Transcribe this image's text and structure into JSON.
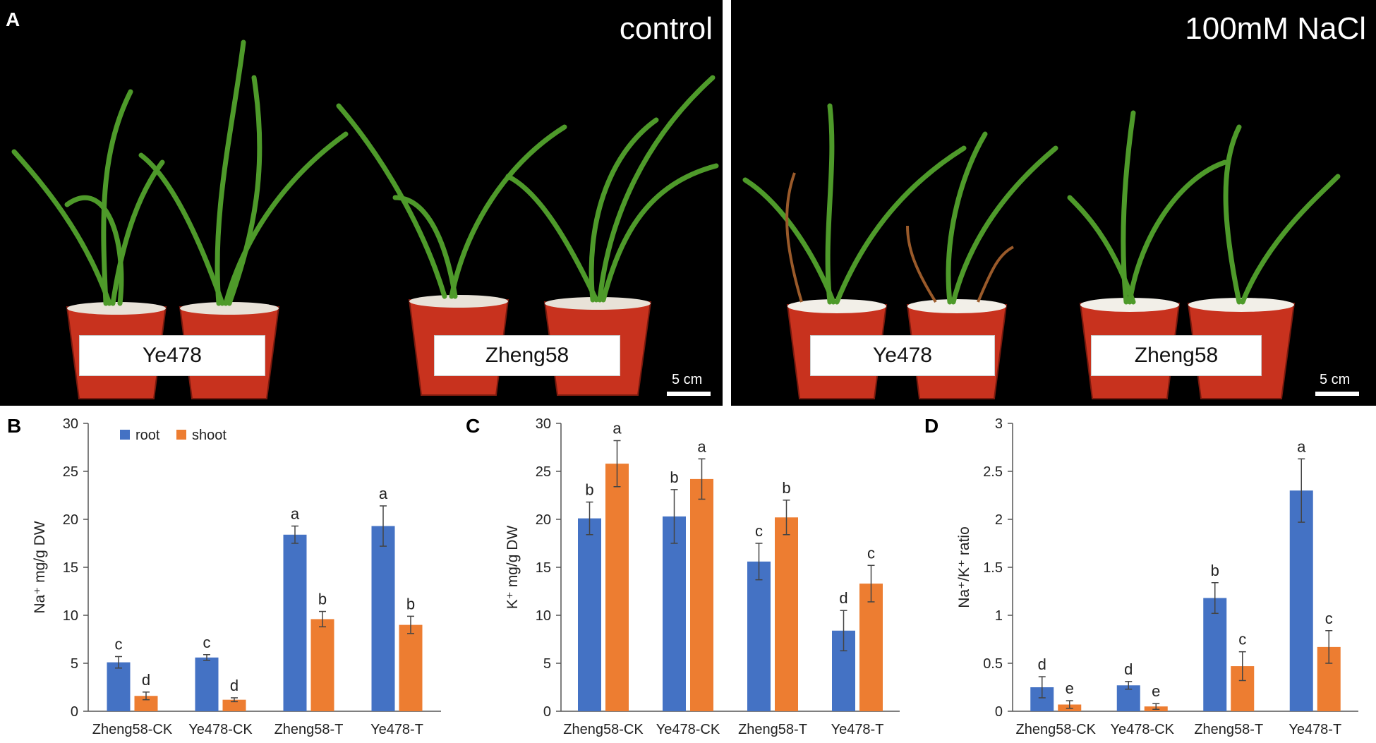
{
  "panel_a": {
    "letter": "A",
    "left": {
      "title": "control",
      "labels": [
        "Ye478",
        "Zheng58"
      ],
      "scale_bar": "5 cm"
    },
    "right": {
      "title": "100mM NaCl",
      "labels": [
        "Ye478",
        "Zheng58"
      ],
      "scale_bar": "5 cm"
    }
  },
  "chart_data": [
    {
      "panel": "B",
      "type": "bar",
      "categories": [
        "Zheng58-CK",
        "Ye478-CK",
        "Zheng58-T",
        "Ye478-T"
      ],
      "series": [
        {
          "name": "root",
          "values": [
            5.1,
            5.6,
            18.4,
            19.3
          ],
          "errors": [
            0.6,
            0.3,
            0.9,
            2.1
          ],
          "letters": [
            "c",
            "c",
            "a",
            "a"
          ],
          "color": "#4472C4"
        },
        {
          "name": "shoot",
          "values": [
            1.6,
            1.2,
            9.6,
            9.0
          ],
          "errors": [
            0.4,
            0.2,
            0.8,
            0.9
          ],
          "letters": [
            "d",
            "d",
            "b",
            "b"
          ],
          "color": "#ED7D31"
        }
      ],
      "ylabel": "Na⁺ mg/g DW",
      "ylim": [
        0,
        30
      ],
      "yticks": [
        "0",
        "5",
        "10",
        "15",
        "20",
        "25",
        "30"
      ],
      "legend": "top-left"
    },
    {
      "panel": "C",
      "type": "bar",
      "categories": [
        "Zheng58-CK",
        "Ye478-CK",
        "Zheng58-T",
        "Ye478-T"
      ],
      "series": [
        {
          "name": "root",
          "values": [
            20.1,
            20.3,
            15.6,
            8.4
          ],
          "errors": [
            1.7,
            2.8,
            1.9,
            2.1
          ],
          "letters": [
            "b",
            "b",
            "c",
            "d"
          ],
          "color": "#4472C4"
        },
        {
          "name": "shoot",
          "values": [
            25.8,
            24.2,
            20.2,
            13.3
          ],
          "errors": [
            2.4,
            2.1,
            1.8,
            1.9
          ],
          "letters": [
            "a",
            "a",
            "b",
            "c"
          ],
          "color": "#ED7D31"
        }
      ],
      "ylabel": "K⁺ mg/g DW",
      "ylim": [
        0,
        30
      ],
      "yticks": [
        "0",
        "5",
        "10",
        "15",
        "20",
        "25",
        "30"
      ]
    },
    {
      "panel": "D",
      "type": "bar",
      "categories": [
        "Zheng58-CK",
        "Ye478-CK",
        "Zheng58-T",
        "Ye478-T"
      ],
      "series": [
        {
          "name": "root",
          "values": [
            0.25,
            0.27,
            1.18,
            2.3
          ],
          "errors": [
            0.11,
            0.04,
            0.16,
            0.33
          ],
          "letters": [
            "d",
            "d",
            "b",
            "a"
          ],
          "color": "#4472C4"
        },
        {
          "name": "shoot",
          "values": [
            0.07,
            0.05,
            0.47,
            0.67
          ],
          "errors": [
            0.04,
            0.03,
            0.15,
            0.17
          ],
          "letters": [
            "e",
            "e",
            "c",
            "c"
          ],
          "color": "#ED7D31"
        }
      ],
      "ylabel": "Na⁺/K⁺ ratio",
      "ylim": [
        0,
        3
      ],
      "yticks": [
        "0",
        "0.5",
        "1",
        "1.5",
        "2",
        "2.5",
        "3"
      ]
    }
  ]
}
